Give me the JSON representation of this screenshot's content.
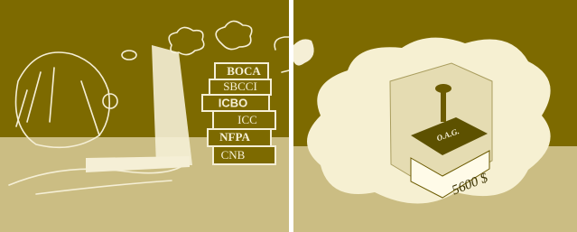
{
  "books": [
    "BOCA",
    "SBCCI",
    "ICBO",
    "ICC",
    "NFPA",
    "CNB"
  ],
  "box": {
    "label": "O.A.G.",
    "price": "5600 $"
  }
}
